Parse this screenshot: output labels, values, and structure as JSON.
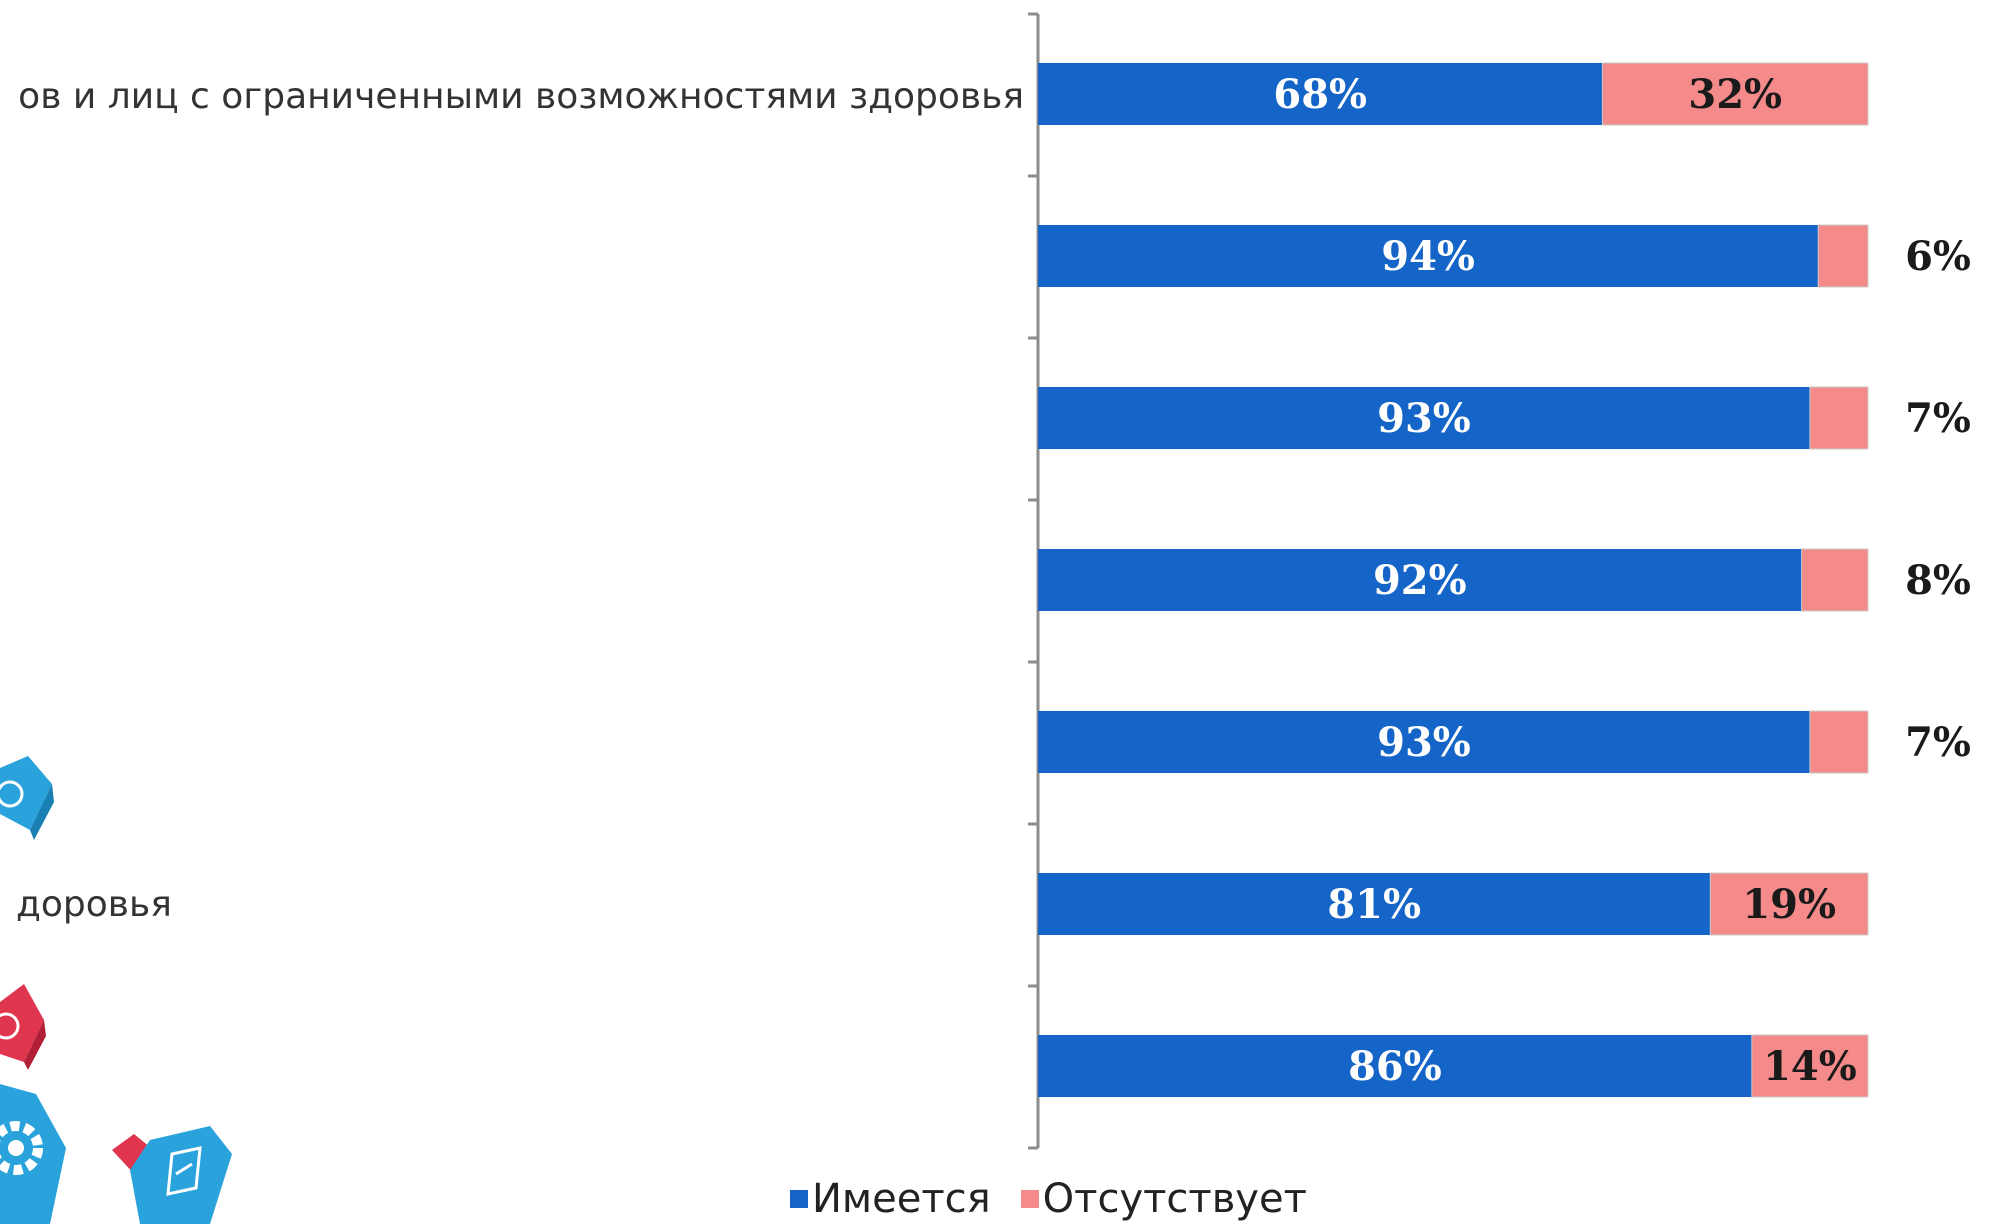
{
  "colors": {
    "present": "#1565C8",
    "absent": "#F48A8A",
    "axis": "#8c8c8c",
    "label_on_blue": "#ffffff",
    "label_on_pink": "#1a1a1a",
    "decor_blue": "#2aa3dc",
    "decor_red": "#e0354e"
  },
  "category_labels": {
    "first": "ов и лиц с ограниченными возможностями здоровья",
    "sixth": "доровья"
  },
  "legend": {
    "present": "Имеется",
    "absent": "Отсутствует"
  },
  "chart_data": {
    "type": "bar",
    "orientation": "horizontal",
    "stacked": "100%",
    "categories": [
      "ов и лиц с ограниченными возможностями здоровья",
      "",
      "",
      "",
      "",
      "доровья",
      ""
    ],
    "series": [
      {
        "name": "Имеется",
        "values": [
          68,
          94,
          93,
          92,
          93,
          81,
          86
        ]
      },
      {
        "name": "Отсутствует",
        "values": [
          32,
          6,
          7,
          8,
          7,
          19,
          14
        ]
      }
    ],
    "data_labels": [
      [
        "68%",
        "94%",
        "93%",
        "92%",
        "93%",
        "81%",
        "86%"
      ],
      [
        "32%",
        "6%",
        "7%",
        "8%",
        "7%",
        "19%",
        "14%"
      ]
    ],
    "xlim": [
      0,
      100
    ],
    "grid": false,
    "legend_position": "bottom"
  }
}
